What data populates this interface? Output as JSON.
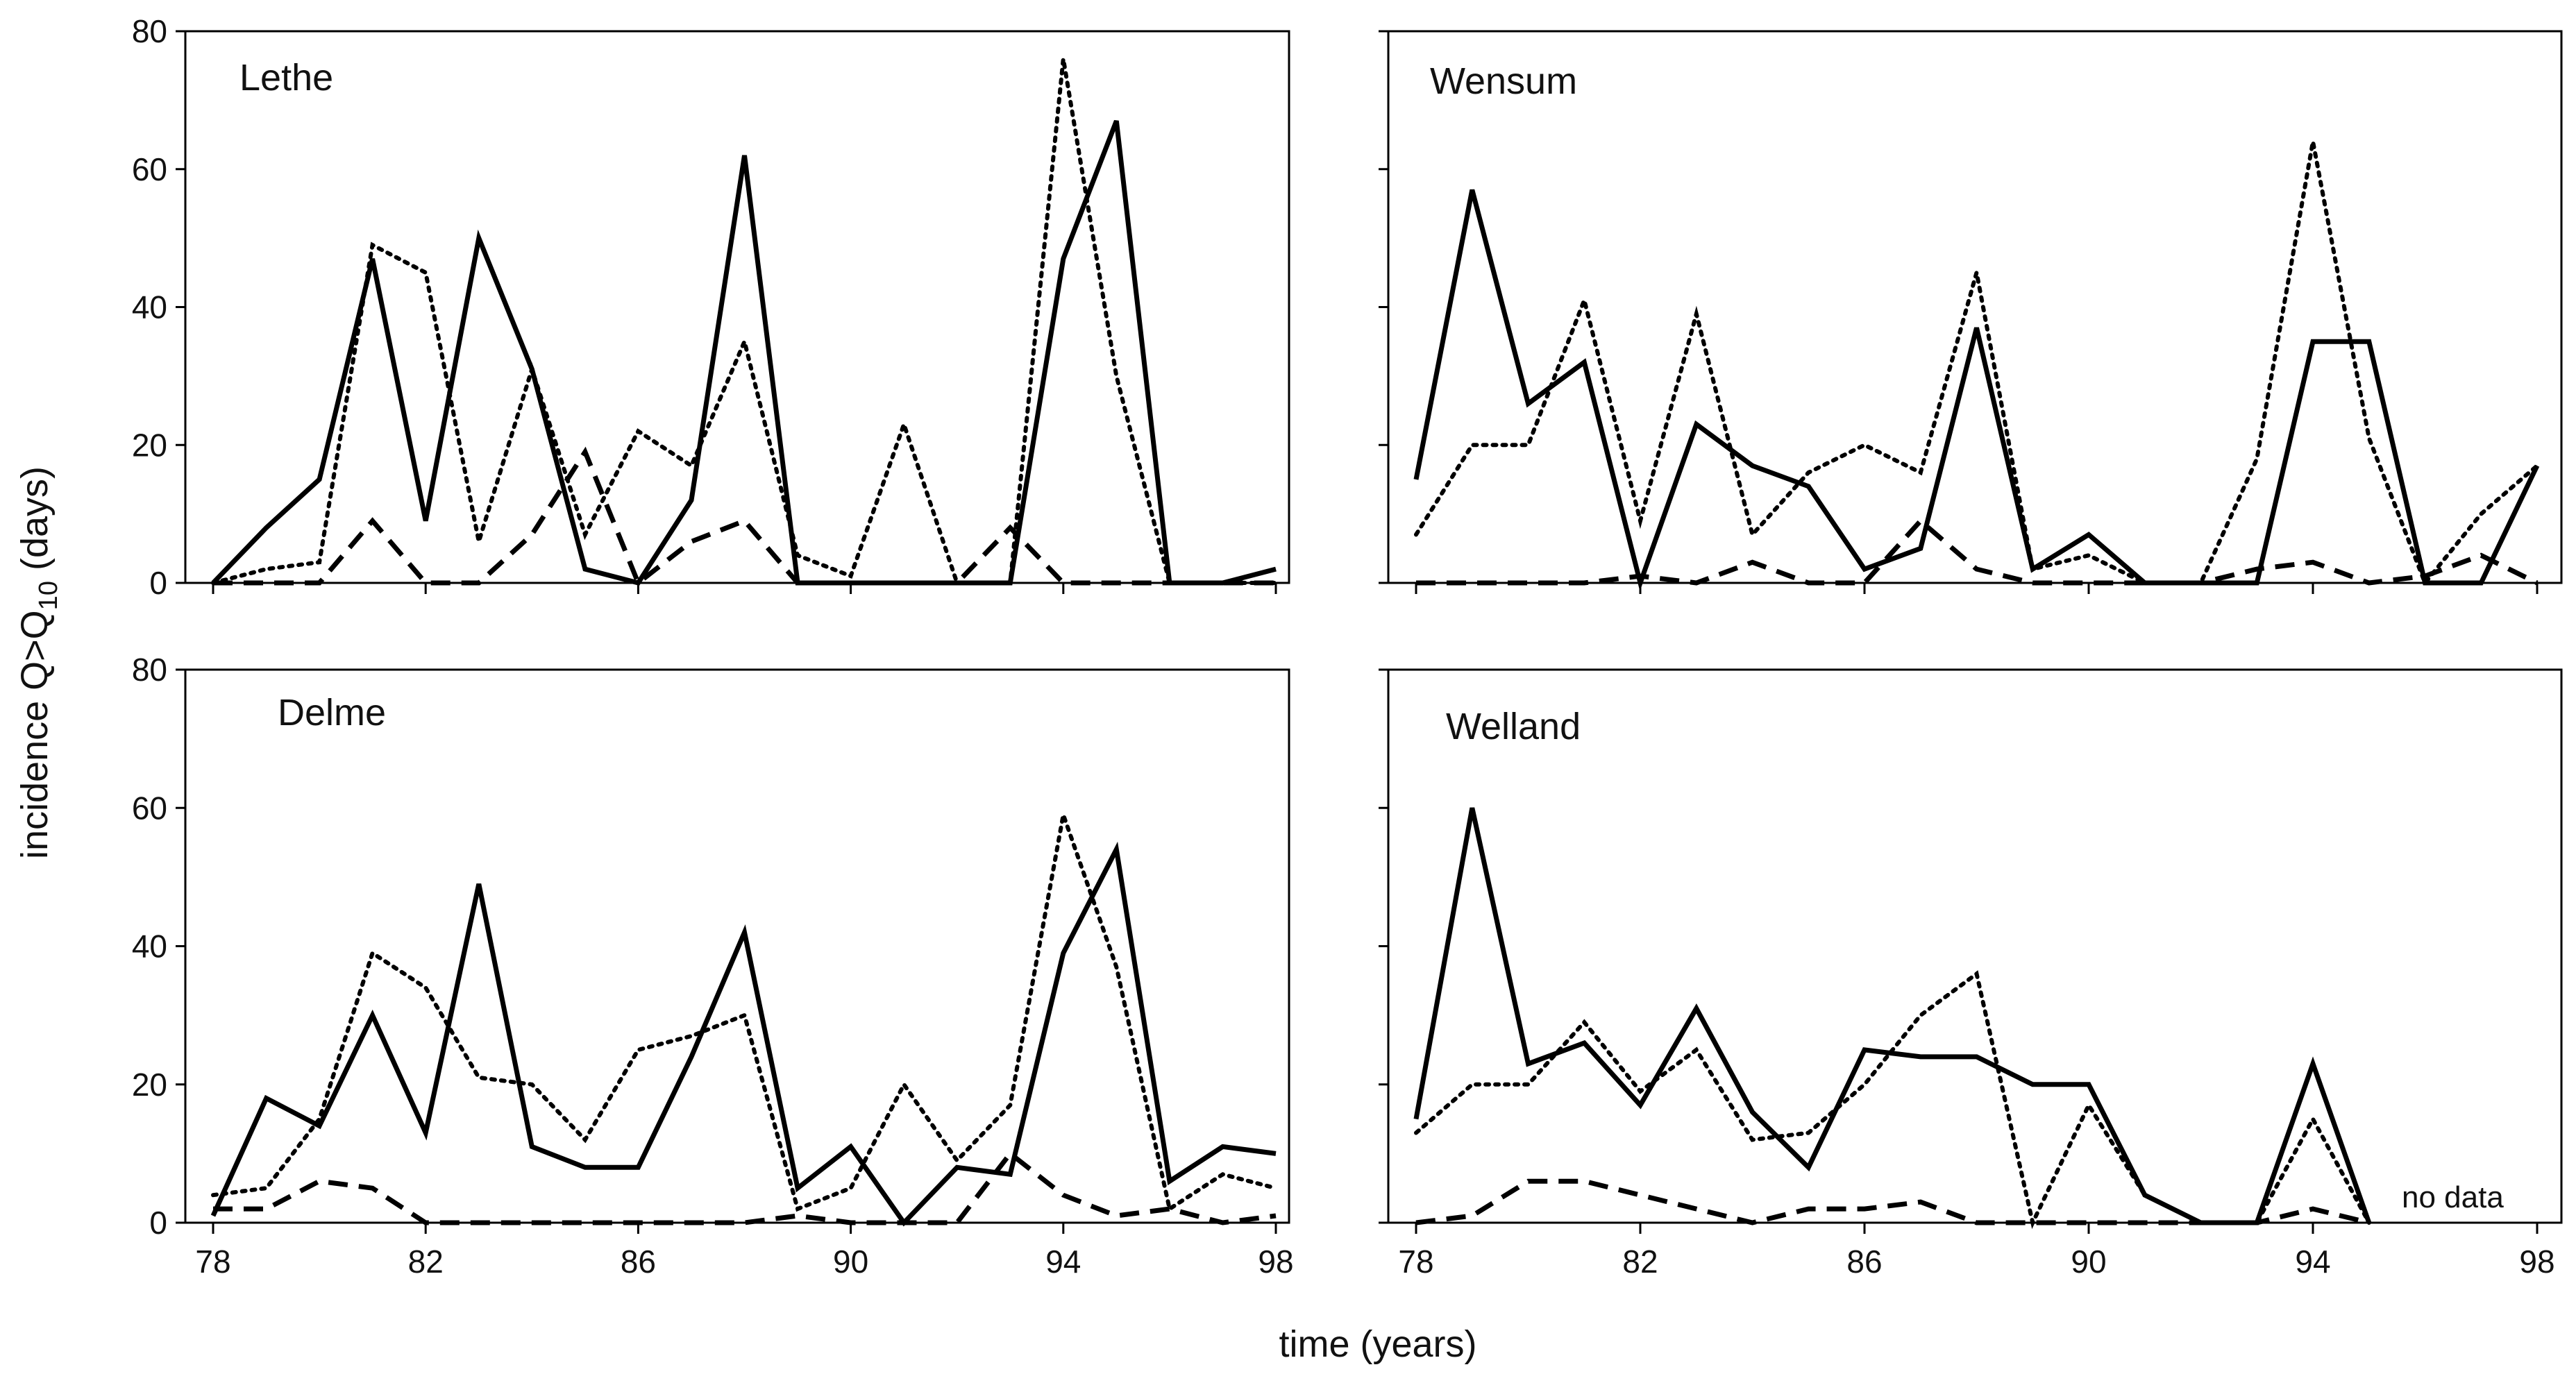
{
  "figure": {
    "ylabel_main": "incidence Q>Q",
    "ylabel_sub": "10",
    "ylabel_tail": " (days)",
    "xlabel": "time (years)"
  },
  "chart_data": [
    {
      "type": "line",
      "title": "Lethe",
      "xlim": [
        78,
        98
      ],
      "ylim": [
        0,
        80
      ],
      "xticks": [
        78,
        82,
        86,
        90,
        94,
        98
      ],
      "yticks": [
        0,
        20,
        40,
        60,
        80
      ],
      "series": [
        {
          "name": "solid",
          "style": "solid",
          "x": [
            78,
            79,
            80,
            81,
            82,
            83,
            84,
            85,
            86,
            87,
            88,
            89,
            90,
            91,
            92,
            93,
            94,
            95,
            96,
            97,
            98
          ],
          "y": [
            0,
            8,
            15,
            47,
            9,
            50,
            31,
            2,
            0,
            12,
            62,
            0,
            0,
            0,
            0,
            0,
            47,
            67,
            0,
            0,
            2
          ]
        },
        {
          "name": "dotted",
          "style": "dotted",
          "x": [
            78,
            79,
            80,
            81,
            82,
            83,
            84,
            85,
            86,
            87,
            88,
            89,
            90,
            91,
            92,
            93,
            94,
            95,
            96,
            97,
            98
          ],
          "y": [
            0,
            2,
            3,
            49,
            45,
            6,
            31,
            7,
            22,
            17,
            35,
            4,
            1,
            23,
            0,
            0,
            76,
            30,
            0,
            0,
            0
          ]
        },
        {
          "name": "dashed",
          "style": "dashed",
          "x": [
            78,
            79,
            80,
            81,
            82,
            83,
            84,
            85,
            86,
            87,
            88,
            89,
            90,
            91,
            92,
            93,
            94,
            95,
            96,
            97,
            98
          ],
          "y": [
            0,
            0,
            0,
            9,
            0,
            0,
            7,
            19,
            0,
            6,
            9,
            0,
            0,
            0,
            0,
            8,
            0,
            0,
            0,
            0,
            0
          ]
        }
      ]
    },
    {
      "type": "line",
      "title": "Wensum",
      "xlim": [
        78,
        98
      ],
      "ylim": [
        0,
        80
      ],
      "xticks": [
        78,
        82,
        86,
        90,
        94,
        98
      ],
      "yticks": [
        0,
        20,
        40,
        60,
        80
      ],
      "series": [
        {
          "name": "solid",
          "style": "solid",
          "x": [
            78,
            79,
            80,
            81,
            82,
            83,
            84,
            85,
            86,
            87,
            88,
            89,
            90,
            91,
            92,
            93,
            94,
            95,
            96,
            97,
            98
          ],
          "y": [
            15,
            57,
            26,
            32,
            0,
            23,
            17,
            14,
            2,
            5,
            37,
            2,
            7,
            0,
            0,
            0,
            35,
            35,
            0,
            0,
            17
          ]
        },
        {
          "name": "dotted",
          "style": "dotted",
          "x": [
            78,
            79,
            80,
            81,
            82,
            83,
            84,
            85,
            86,
            87,
            88,
            89,
            90,
            91,
            92,
            93,
            94,
            95,
            96,
            97,
            98
          ],
          "y": [
            7,
            20,
            20,
            41,
            9,
            39,
            7,
            16,
            20,
            16,
            45,
            2,
            4,
            0,
            0,
            18,
            64,
            21,
            0,
            10,
            17
          ]
        },
        {
          "name": "dashed",
          "style": "dashed",
          "x": [
            78,
            79,
            80,
            81,
            82,
            83,
            84,
            85,
            86,
            87,
            88,
            89,
            90,
            91,
            92,
            93,
            94,
            95,
            96,
            97,
            98
          ],
          "y": [
            0,
            0,
            0,
            0,
            1,
            0,
            3,
            0,
            0,
            9,
            2,
            0,
            0,
            0,
            0,
            2,
            3,
            0,
            1,
            4,
            0
          ]
        }
      ]
    },
    {
      "type": "line",
      "title": "Delme",
      "xlim": [
        78,
        98
      ],
      "ylim": [
        0,
        80
      ],
      "xticks": [
        78,
        82,
        86,
        90,
        94,
        98
      ],
      "yticks": [
        0,
        20,
        40,
        60,
        80
      ],
      "series": [
        {
          "name": "solid",
          "style": "solid",
          "x": [
            78,
            79,
            80,
            81,
            82,
            83,
            84,
            85,
            86,
            87,
            88,
            89,
            90,
            91,
            92,
            93,
            94,
            95,
            96,
            97,
            98
          ],
          "y": [
            1,
            18,
            14,
            30,
            13,
            49,
            11,
            8,
            8,
            24,
            42,
            5,
            11,
            0,
            8,
            7,
            39,
            54,
            6,
            11,
            10
          ]
        },
        {
          "name": "dotted",
          "style": "dotted",
          "x": [
            78,
            79,
            80,
            81,
            82,
            83,
            84,
            85,
            86,
            87,
            88,
            89,
            90,
            91,
            92,
            93,
            94,
            95,
            96,
            97,
            98
          ],
          "y": [
            4,
            5,
            15,
            39,
            34,
            21,
            20,
            12,
            25,
            27,
            30,
            2,
            5,
            20,
            9,
            17,
            59,
            37,
            2,
            7,
            5
          ]
        },
        {
          "name": "dashed",
          "style": "dashed",
          "x": [
            78,
            79,
            80,
            81,
            82,
            83,
            84,
            85,
            86,
            87,
            88,
            89,
            90,
            91,
            92,
            93,
            94,
            95,
            96,
            97,
            98
          ],
          "y": [
            2,
            2,
            6,
            5,
            0,
            0,
            0,
            0,
            0,
            0,
            0,
            1,
            0,
            0,
            0,
            10,
            4,
            1,
            2,
            0,
            1
          ]
        }
      ]
    },
    {
      "type": "line",
      "title": "Welland",
      "annotation": "no data",
      "xlim": [
        78,
        98
      ],
      "ylim": [
        0,
        80
      ],
      "xticks": [
        78,
        82,
        86,
        90,
        94,
        98
      ],
      "yticks": [
        0,
        20,
        40,
        60,
        80
      ],
      "series": [
        {
          "name": "solid",
          "style": "solid",
          "x": [
            78,
            79,
            80,
            81,
            82,
            83,
            84,
            85,
            86,
            87,
            88,
            89,
            90,
            91,
            92,
            93,
            94,
            95
          ],
          "y": [
            15,
            60,
            23,
            26,
            17,
            31,
            16,
            8,
            25,
            24,
            24,
            20,
            20,
            4,
            0,
            0,
            23,
            0
          ]
        },
        {
          "name": "dotted",
          "style": "dotted",
          "x": [
            78,
            79,
            80,
            81,
            82,
            83,
            84,
            85,
            86,
            87,
            88,
            89,
            90,
            91,
            92,
            93,
            94,
            95
          ],
          "y": [
            13,
            20,
            20,
            29,
            19,
            25,
            12,
            13,
            20,
            30,
            36,
            0,
            17,
            4,
            0,
            0,
            15,
            0
          ]
        },
        {
          "name": "dashed",
          "style": "dashed",
          "x": [
            78,
            79,
            80,
            81,
            82,
            83,
            84,
            85,
            86,
            87,
            88,
            89,
            90,
            91,
            92,
            93,
            94,
            95
          ],
          "y": [
            0,
            1,
            6,
            6,
            4,
            2,
            0,
            2,
            2,
            3,
            0,
            0,
            0,
            0,
            0,
            0,
            2,
            0
          ]
        }
      ]
    }
  ]
}
